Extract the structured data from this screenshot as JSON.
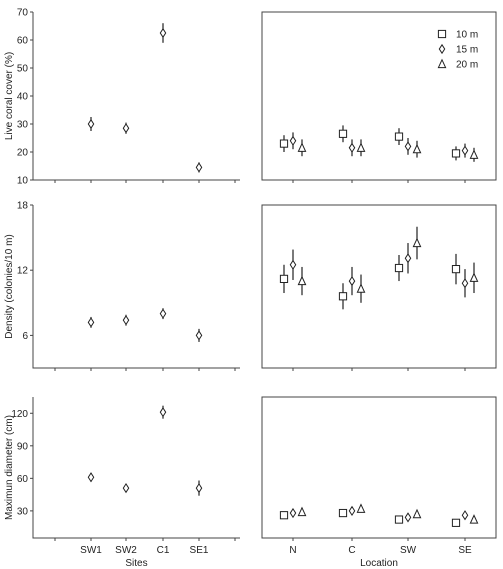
{
  "chart_data": [
    {
      "type": "scatter",
      "panel": "top-left",
      "ylabel": "Live coral cover (%)",
      "ylim": [
        10,
        70
      ],
      "yticks": [
        10,
        20,
        30,
        40,
        50,
        60,
        70
      ],
      "categories": [
        "SW1",
        "SW2",
        "C1",
        "SE1"
      ],
      "values": [
        30,
        28.5,
        62.5,
        14.5
      ],
      "errors": [
        2.5,
        2,
        3.5,
        1.8
      ],
      "marker": "diamond"
    },
    {
      "type": "scatter",
      "panel": "top-right",
      "ylim": [
        10,
        70
      ],
      "categories": [
        "N",
        "C",
        "SW",
        "SE"
      ],
      "legend_position": "top-right",
      "series": [
        {
          "name": "10 m",
          "marker": "square",
          "values": [
            23,
            26.5,
            25.5,
            19.5
          ],
          "errors": [
            3,
            3,
            3,
            2.5
          ]
        },
        {
          "name": "15 m",
          "marker": "diamond",
          "values": [
            24,
            21.5,
            22,
            20.5
          ],
          "errors": [
            3,
            3,
            3,
            2.5
          ]
        },
        {
          "name": "20 m",
          "marker": "triangle",
          "values": [
            21.5,
            21.5,
            21,
            19
          ],
          "errors": [
            3,
            3,
            3,
            2.5
          ]
        }
      ]
    },
    {
      "type": "scatter",
      "panel": "middle-left",
      "ylabel": "Density (colonies/10 m)",
      "ylim": [
        3,
        18
      ],
      "yticks": [
        6,
        12,
        18
      ],
      "categories": [
        "SW1",
        "SW2",
        "C1",
        "SE1"
      ],
      "values": [
        7.2,
        7.4,
        8,
        6
      ],
      "errors": [
        0.5,
        0.5,
        0.5,
        0.6
      ],
      "marker": "diamond"
    },
    {
      "type": "scatter",
      "panel": "middle-right",
      "ylim": [
        3,
        18
      ],
      "categories": [
        "N",
        "C",
        "SW",
        "SE"
      ],
      "series": [
        {
          "name": "10 m",
          "marker": "square",
          "values": [
            11.2,
            9.6,
            12.2,
            12.1
          ],
          "errors": [
            1.3,
            1.2,
            1.2,
            1.4
          ]
        },
        {
          "name": "15 m",
          "marker": "diamond",
          "values": [
            12.5,
            11,
            13.1,
            10.8
          ],
          "errors": [
            1.4,
            1.3,
            1.4,
            1.3
          ]
        },
        {
          "name": "20 m",
          "marker": "triangle",
          "values": [
            11,
            10.3,
            14.5,
            11.3
          ],
          "errors": [
            1.3,
            1.3,
            1.5,
            1.4
          ]
        }
      ]
    },
    {
      "type": "scatter",
      "panel": "bottom-left",
      "ylabel": "Maximun diameter (cm)",
      "xlabel": "Sites",
      "ylim": [
        5,
        135
      ],
      "yticks": [
        30,
        60,
        90,
        120
      ],
      "categories": [
        "SW1",
        "SW2",
        "C1",
        "SE1"
      ],
      "values": [
        61,
        51,
        121,
        51
      ],
      "errors": [
        4,
        2.5,
        6,
        7
      ],
      "marker": "diamond"
    },
    {
      "type": "scatter",
      "panel": "bottom-right",
      "xlabel": "Location",
      "ylim": [
        5,
        135
      ],
      "categories": [
        "N",
        "C",
        "SW",
        "SE"
      ],
      "series": [
        {
          "name": "10 m",
          "marker": "square",
          "values": [
            26,
            28,
            22,
            19
          ],
          "errors": [
            2.5,
            2.5,
            2,
            2
          ]
        },
        {
          "name": "15 m",
          "marker": "diamond",
          "values": [
            28,
            30,
            24,
            26
          ],
          "errors": [
            2.5,
            2.5,
            2,
            2
          ]
        },
        {
          "name": "20 m",
          "marker": "triangle",
          "values": [
            29,
            32,
            27,
            22
          ],
          "errors": [
            2.5,
            2.5,
            2,
            2
          ]
        }
      ]
    }
  ]
}
